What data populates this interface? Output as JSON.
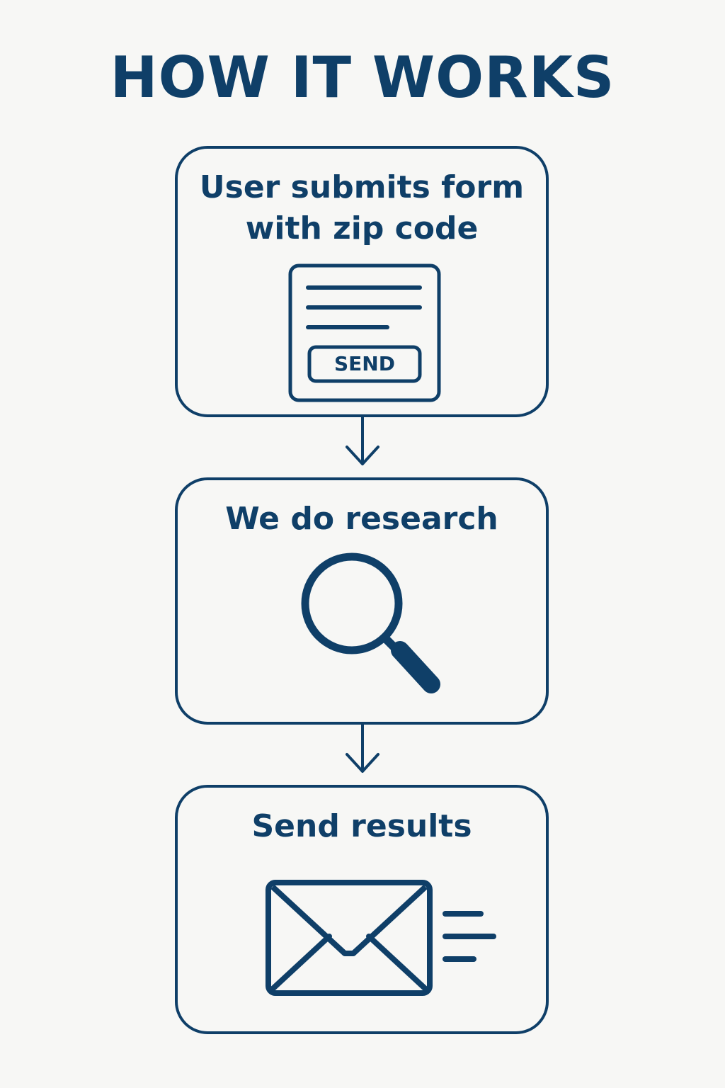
{
  "title": "HOW IT WORKS",
  "steps": [
    {
      "label": "User submits form\nwith zip code",
      "icon": "form-icon",
      "button_label": "SEND"
    },
    {
      "label": "We do research",
      "icon": "search-icon"
    },
    {
      "label": "Send results",
      "icon": "mail-icon"
    }
  ],
  "colors": {
    "primary": "#0f3f68",
    "background": "#f7f7f5"
  }
}
